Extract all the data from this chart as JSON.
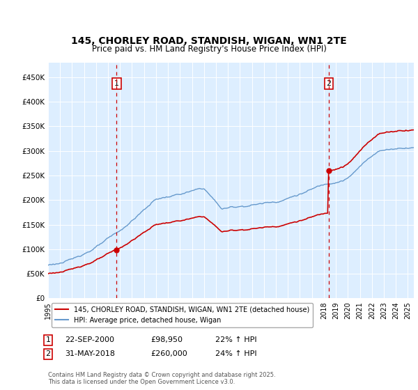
{
  "title": "145, CHORLEY ROAD, STANDISH, WIGAN, WN1 2TE",
  "subtitle": "Price paid vs. HM Land Registry's House Price Index (HPI)",
  "legend_line1": "145, CHORLEY ROAD, STANDISH, WIGAN, WN1 2TE (detached house)",
  "legend_line2": "HPI: Average price, detached house, Wigan",
  "annotation1_date": "22-SEP-2000",
  "annotation1_price": "£98,950",
  "annotation1_hpi": "22% ↑ HPI",
  "annotation2_date": "31-MAY-2018",
  "annotation2_price": "£260,000",
  "annotation2_hpi": "24% ↑ HPI",
  "footer": "Contains HM Land Registry data © Crown copyright and database right 2025.\nThis data is licensed under the Open Government Licence v3.0.",
  "red_color": "#cc0000",
  "blue_color": "#6699cc",
  "background_color": "#ddeeff",
  "ylim": [
    0,
    480000
  ],
  "yticks": [
    0,
    50000,
    100000,
    150000,
    200000,
    250000,
    300000,
    350000,
    400000,
    450000
  ],
  "ytick_labels": [
    "£0",
    "£50K",
    "£100K",
    "£150K",
    "£200K",
    "£250K",
    "£300K",
    "£350K",
    "£400K",
    "£450K"
  ],
  "vline1_x": 2000.72,
  "vline2_x": 2018.41,
  "marker1_x": 2000.72,
  "marker1_y": 98950,
  "marker2_x": 2018.41,
  "marker2_y": 260000,
  "xlim_start": 1995.0,
  "xlim_end": 2025.5
}
